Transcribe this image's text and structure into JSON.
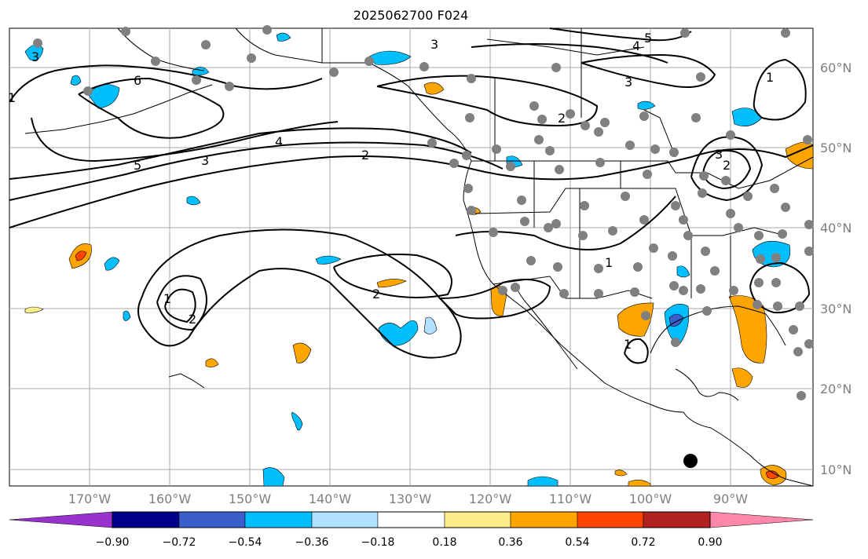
{
  "title": "2025062700 F024",
  "lat_labels": [
    "60°N",
    "50°N",
    "40°N",
    "30°N",
    "20°N",
    "10°N"
  ],
  "lon_labels": [
    "170°W",
    "160°W",
    "150°W",
    "140°W",
    "130°W",
    "120°W",
    "110°W",
    "100°W",
    "90°W"
  ],
  "contour_labels": [
    "6",
    "5",
    "4",
    "3",
    "2",
    "1",
    "3",
    "2",
    "3",
    "4",
    "5",
    "3",
    "1",
    "3",
    "2",
    "1",
    "1",
    "2",
    "2",
    "1"
  ],
  "colorbar": {
    "ticks": [
      "−0.90",
      "−0.72",
      "−0.54",
      "−0.36",
      "−0.18",
      "0.18",
      "0.36",
      "0.54",
      "0.72",
      "0.90"
    ],
    "colors": [
      "#9932cc",
      "#00008b",
      "#3a5fcd",
      "#00bfff",
      "#b0e2ff",
      "#ffffff",
      "#ffec8b",
      "#ffa500",
      "#ff4500",
      "#b22222",
      "#ff88aa"
    ]
  },
  "marker_colors": {
    "station": "#808080",
    "target": "#000000"
  }
}
